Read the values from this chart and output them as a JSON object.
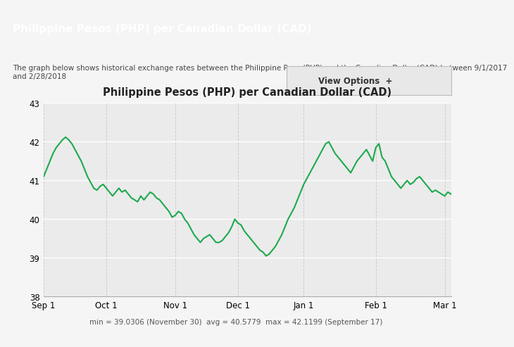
{
  "title": "Philippine Pesos (PHP) per Canadian Dollar (CAD)",
  "header_title": "Philippine Pesos (PHP) per Canadian Dollar (CAD)",
  "header_bg": "#2da84e",
  "subtitle": "The graph below shows historical exchange rates between the Philippine Peso (PHP) and the Canadian Dollar (CAD) between 9/1/2017\nand 2/28/2018",
  "footer_text": "min = 39.0306 (November 30)  avg = 40.5779  max = 42.1199 (September 17)",
  "view_options_text": "View Options  +",
  "ylim": [
    38,
    43
  ],
  "yticks": [
    38,
    39,
    40,
    41,
    42,
    43
  ],
  "xlabel_ticks": [
    "Sep 1",
    "Oct 1",
    "Nov 1",
    "Dec 1",
    "Jan 1",
    "Feb 1",
    "Mar 1"
  ],
  "line_color": "#1daa4e",
  "bg_color": "#f0f0f0",
  "plot_bg": "#e8e8e8",
  "grid_color": "#ffffff",
  "chart_area_bg": "#ebebeb",
  "data_x": [
    0,
    1,
    2,
    3,
    4,
    5,
    6,
    7,
    8,
    9,
    10,
    11,
    12,
    13,
    14,
    15,
    16,
    17,
    18,
    19,
    20,
    21,
    22,
    23,
    24,
    25,
    26,
    27,
    28,
    29,
    30,
    31,
    32,
    33,
    34,
    35,
    36,
    37,
    38,
    39,
    40,
    41,
    42,
    43,
    44,
    45,
    46,
    47,
    48,
    49,
    50,
    51,
    52,
    53,
    54,
    55,
    56,
    57,
    58,
    59,
    60,
    61,
    62,
    63,
    64,
    65,
    66,
    67,
    68,
    69,
    70,
    71,
    72,
    73,
    74,
    75,
    76,
    77,
    78,
    79,
    80,
    81,
    82,
    83,
    84,
    85,
    86,
    87,
    88,
    89,
    90,
    91,
    92,
    93,
    94,
    95,
    96,
    97,
    98,
    99,
    100,
    101,
    102,
    103,
    104,
    105,
    106,
    107,
    108,
    109,
    110,
    111,
    112,
    113,
    114,
    115,
    116,
    117,
    118,
    119,
    120,
    121,
    122,
    123,
    124,
    125,
    126,
    127,
    128,
    129,
    130
  ],
  "data_y": [
    41.1,
    41.3,
    41.5,
    41.7,
    41.85,
    41.95,
    42.05,
    42.12,
    42.05,
    41.95,
    41.8,
    41.65,
    41.5,
    41.3,
    41.1,
    40.95,
    40.8,
    40.75,
    40.85,
    40.9,
    40.8,
    40.7,
    40.6,
    40.7,
    40.8,
    40.7,
    40.75,
    40.65,
    40.55,
    40.5,
    40.45,
    40.6,
    40.5,
    40.6,
    40.7,
    40.65,
    40.55,
    40.5,
    40.4,
    40.3,
    40.2,
    40.05,
    40.1,
    40.2,
    40.15,
    40.0,
    39.9,
    39.75,
    39.6,
    39.5,
    39.4,
    39.5,
    39.55,
    39.6,
    39.5,
    39.4,
    39.4,
    39.45,
    39.55,
    39.65,
    39.8,
    40.0,
    39.9,
    39.85,
    39.7,
    39.6,
    39.5,
    39.4,
    39.3,
    39.2,
    39.15,
    39.05,
    39.1,
    39.2,
    39.3,
    39.45,
    39.6,
    39.8,
    40.0,
    40.15,
    40.3,
    40.5,
    40.7,
    40.9,
    41.05,
    41.2,
    41.35,
    41.5,
    41.65,
    41.8,
    41.95,
    42.0,
    41.85,
    41.7,
    41.6,
    41.5,
    41.4,
    41.3,
    41.2,
    41.35,
    41.5,
    41.6,
    41.7,
    41.8,
    41.65,
    41.5,
    41.85,
    41.95,
    41.6,
    41.5,
    41.3,
    41.1,
    41.0,
    40.9,
    40.8,
    40.9,
    41.0,
    40.9,
    40.95,
    41.05,
    41.1,
    41.0,
    40.9,
    40.8,
    40.7,
    40.75,
    40.7,
    40.65,
    40.6,
    40.7,
    40.65
  ]
}
